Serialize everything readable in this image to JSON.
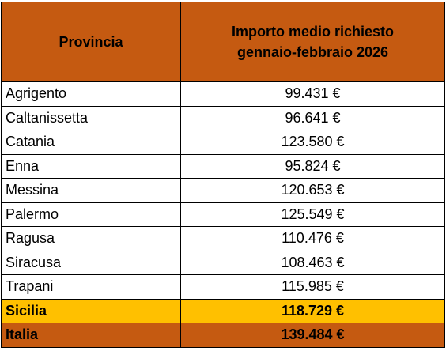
{
  "table": {
    "header": {
      "col1": "Provincia",
      "col2_line1": "Importo medio richiesto",
      "col2_line2": "gennaio-febbraio 2026"
    },
    "rows": [
      {
        "province": "Agrigento",
        "amount": "99.431 €"
      },
      {
        "province": "Caltanissetta",
        "amount": "96.641 €"
      },
      {
        "province": "Catania",
        "amount": "123.580 €"
      },
      {
        "province": "Enna",
        "amount": "95.824 €"
      },
      {
        "province": "Messina",
        "amount": "120.653 €"
      },
      {
        "province": "Palermo",
        "amount": "125.549 €"
      },
      {
        "province": "Ragusa",
        "amount": "110.476 €"
      },
      {
        "province": "Siracusa",
        "amount": "108.463 €"
      },
      {
        "province": "Trapani",
        "amount": "115.985 €"
      }
    ],
    "totals": {
      "sicilia": {
        "province": "Sicilia",
        "amount": "118.729 €"
      },
      "italia": {
        "province": "Italia",
        "amount": "139.484 €"
      }
    }
  },
  "colors": {
    "header_bg": "#c55a11",
    "sicilia_bg": "#ffc000",
    "italia_bg": "#c55a11"
  }
}
